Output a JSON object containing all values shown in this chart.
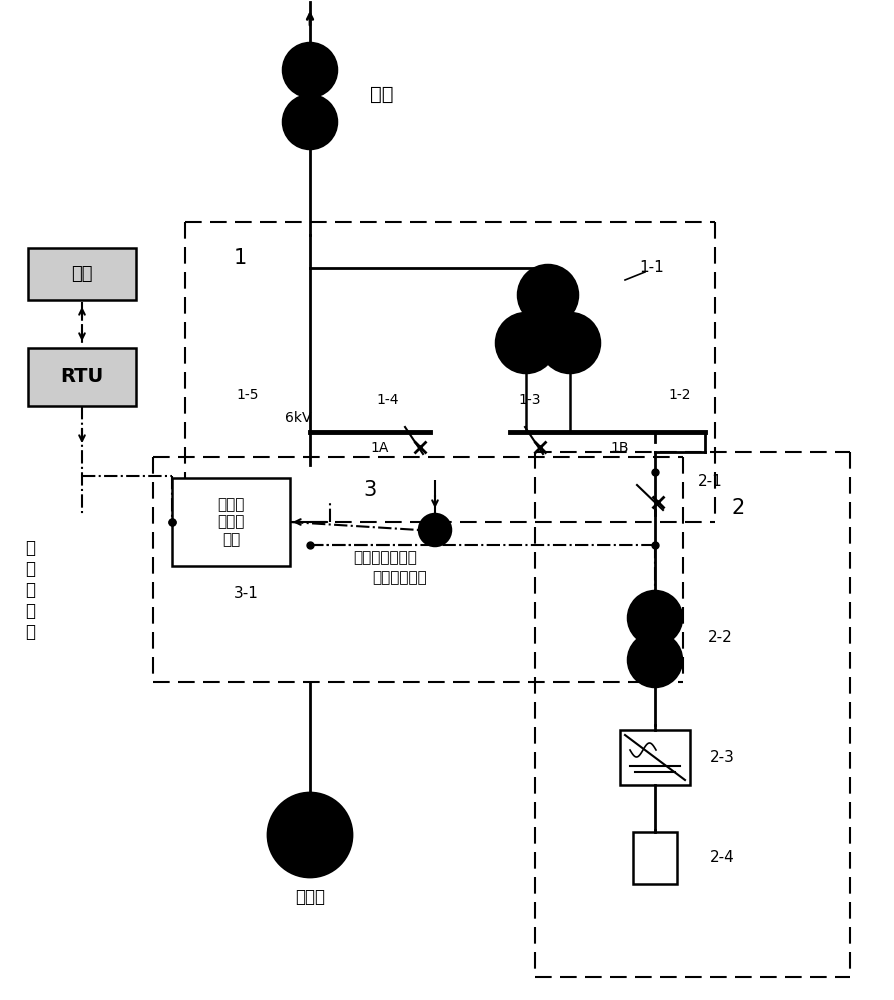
{
  "bg_color": "#ffffff",
  "fig_width": 8.94,
  "fig_height": 10.0,
  "labels": {
    "zhubian": "主变",
    "tiaodu": "调度",
    "RTU": "RTU",
    "jizu_label": "机\n组\n总\n出\n力",
    "label1": "1",
    "label1_1": "1-1",
    "label1_2": "1-2",
    "label1_3": "1-3",
    "label1_4": "1-4",
    "label1_5": "1-5",
    "label6kV": "6kV",
    "label1A": "1A",
    "label1B": "1B",
    "label2": "2",
    "label2_1": "2-1",
    "label2_2": "2-2",
    "label2_3": "2-3",
    "label2_4": "2-4",
    "label3": "3",
    "label3_1": "3-1",
    "fadianji_transmitter": "发电机\n出口变\n送器",
    "fadianji_out_power": "发电机输出功率",
    "chuneng_absorb": "储能吸收功率",
    "fadianji": "发电机"
  }
}
